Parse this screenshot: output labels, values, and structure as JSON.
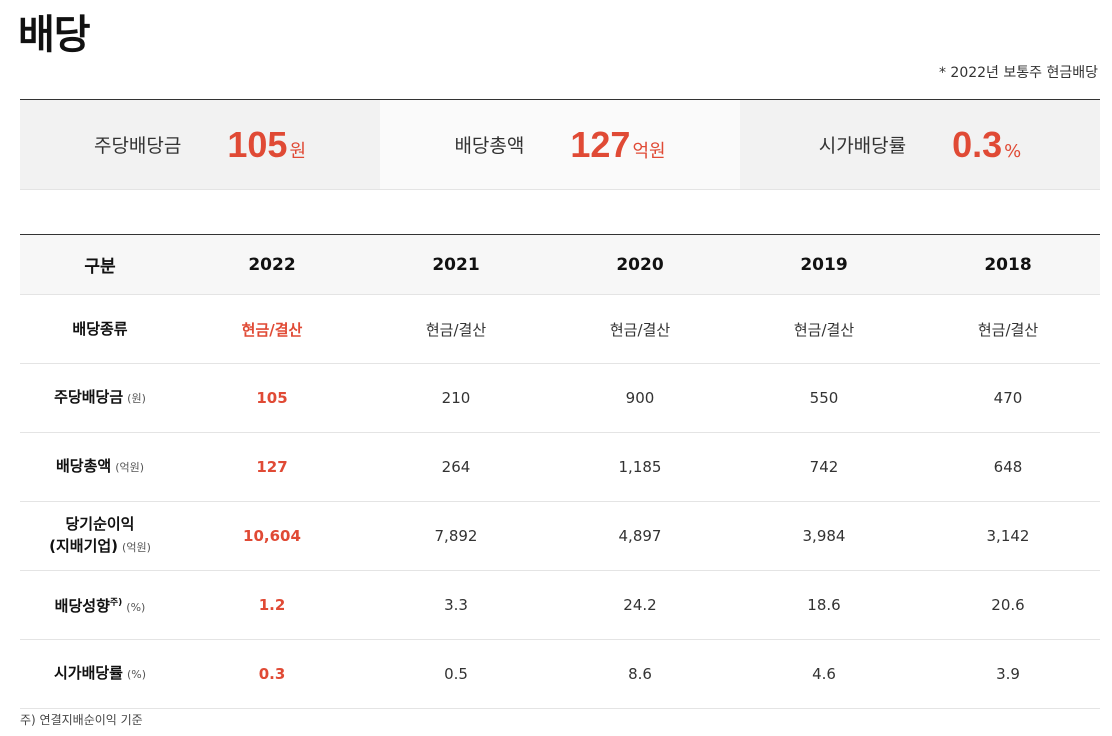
{
  "title": "배당",
  "note": "* 2022년 보통주 현금배당",
  "summary": [
    {
      "label": "주당배당금",
      "value": "105",
      "unit": "원"
    },
    {
      "label": "배당총액",
      "value": "127",
      "unit": "억원"
    },
    {
      "label": "시가배당률",
      "value": "0.3",
      "unit": "%"
    }
  ],
  "table": {
    "headers": [
      "구분",
      "2022",
      "2021",
      "2020",
      "2019",
      "2018"
    ],
    "rows": [
      {
        "label": "배당종류",
        "unit": "",
        "sup": "",
        "values": [
          "현금/결산",
          "현금/결산",
          "현금/결산",
          "현금/결산",
          "현금/결산"
        ]
      },
      {
        "label": "주당배당금",
        "unit": "(원)",
        "sup": "",
        "values": [
          "105",
          "210",
          "900",
          "550",
          "470"
        ]
      },
      {
        "label": "배당총액",
        "unit": "(억원)",
        "sup": "",
        "values": [
          "127",
          "264",
          "1,185",
          "742",
          "648"
        ]
      },
      {
        "label": "당기순이익",
        "label2": "(지배기업)",
        "unit": "(억원)",
        "sup": "",
        "values": [
          "10,604",
          "7,892",
          "4,897",
          "3,984",
          "3,142"
        ]
      },
      {
        "label": "배당성향",
        "unit": "(%)",
        "sup": "주)",
        "values": [
          "1.2",
          "3.3",
          "24.2",
          "18.6",
          "20.6"
        ]
      },
      {
        "label": "시가배당률",
        "unit": "(%)",
        "sup": "",
        "values": [
          "0.3",
          "0.5",
          "8.6",
          "4.6",
          "3.9"
        ]
      }
    ]
  },
  "footnote": "주) 연결지배순이익 기준",
  "colors": {
    "accent": "#e04a35"
  }
}
